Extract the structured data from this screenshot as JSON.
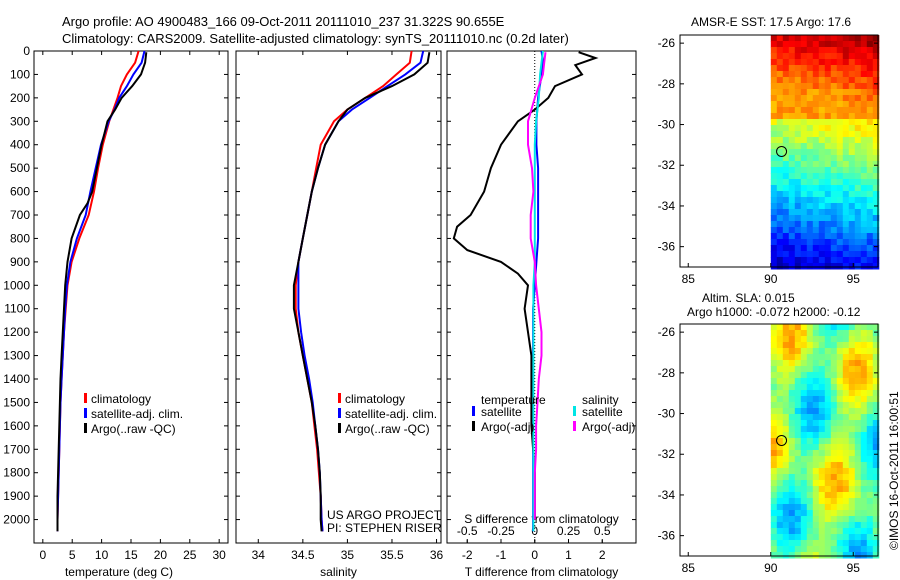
{
  "header": {
    "line1": "Argo profile: AO 4900483_166 09-Oct-2011 20111010_237 31.322S 90.655E",
    "line2": "Climatology: CARS2009. Satellite-adjusted climatology: synTS_20111010.nc (0.2d later)"
  },
  "credits": {
    "project": "US ARGO PROJECT",
    "pi": "PI: STEPHEN RISER",
    "stamp": "©IMOS 16-Oct-2011 16:00:51"
  },
  "colors": {
    "climatology": "#ff0000",
    "satellite_adj": "#0000ff",
    "argo": "#000000",
    "temp_sat_diff": "#0000ff",
    "sal_sat_diff": "#00e5e5",
    "argo_adj_sal_diff": "#ff00ff"
  },
  "legend_profiles": [
    "climatology",
    "satellite-adj. clim.",
    "Argo(..raw -QC)"
  ],
  "legend_diff": {
    "temp_head": "temperature",
    "sal_head": "salinity",
    "sat": "satellite",
    "argo": "Argo(-adj)"
  },
  "map_titles": {
    "sst": "AMSR-E SST: 17.5 Argo: 17.6",
    "sla1": "Altim. SLA: 0.015",
    "sla2": "Argo h1000: -0.072 h2000: -0.12"
  },
  "chart_data": [
    {
      "type": "line",
      "xlabel": "temperature (deg C)",
      "ylabel": "",
      "xlim": [
        -1.5,
        31.5
      ],
      "ylim": [
        2100,
        0
      ],
      "xticks": [
        0,
        5,
        10,
        15,
        20,
        25,
        30
      ],
      "yticks": [
        0,
        100,
        200,
        300,
        400,
        500,
        600,
        700,
        800,
        900,
        1000,
        1100,
        1200,
        1300,
        1400,
        1500,
        1600,
        1700,
        1800,
        1900,
        2000
      ],
      "series": [
        {
          "name": "climatology",
          "depth": [
            0,
            50,
            100,
            150,
            200,
            250,
            300,
            400,
            500,
            600,
            700,
            800,
            900,
            1000,
            1100,
            1200,
            1300,
            1400,
            1500,
            1600,
            1700,
            1800,
            1900,
            2000,
            2050
          ],
          "values": [
            16.3,
            15.7,
            14.3,
            13.3,
            12.7,
            12.0,
            11.3,
            10.2,
            9.4,
            8.7,
            7.8,
            6.2,
            4.9,
            4.2,
            3.9,
            3.6,
            3.4,
            3.2,
            3.0,
            2.9,
            2.8,
            2.7,
            2.6,
            2.5,
            2.5
          ]
        },
        {
          "name": "satellite-adj. clim.",
          "depth": [
            0,
            50,
            100,
            150,
            200,
            250,
            300,
            400,
            500,
            600,
            700,
            800,
            900,
            1000,
            1100,
            1200,
            1300,
            1400,
            1500,
            1600,
            1700,
            1800,
            1900,
            2000,
            2050
          ],
          "values": [
            17.3,
            16.8,
            15.4,
            14.3,
            13.0,
            12.2,
            11.2,
            9.9,
            9.0,
            8.1,
            7.3,
            5.8,
            4.7,
            4.1,
            3.8,
            3.6,
            3.4,
            3.2,
            3.0,
            2.9,
            2.8,
            2.7,
            2.6,
            2.5,
            2.5
          ]
        },
        {
          "name": "Argo(..raw -QC)",
          "depth": [
            5,
            50,
            100,
            150,
            200,
            250,
            300,
            400,
            500,
            600,
            650,
            700,
            800,
            900,
            1000,
            1100,
            1200,
            1300,
            1400,
            1500,
            1600,
            1700,
            1800,
            1900,
            2000,
            2050
          ],
          "values": [
            17.6,
            17.4,
            16.7,
            15.2,
            13.4,
            12.3,
            11.0,
            10.0,
            9.2,
            8.4,
            7.6,
            6.3,
            4.9,
            4.2,
            3.8,
            3.6,
            3.4,
            3.2,
            3.0,
            2.9,
            2.8,
            2.7,
            2.6,
            2.5,
            2.5,
            2.5
          ]
        }
      ]
    },
    {
      "type": "line",
      "xlabel": "salinity",
      "ylabel": "",
      "xlim": [
        33.75,
        36.05
      ],
      "ylim": [
        2100,
        0
      ],
      "xticks": [
        34,
        34.5,
        35,
        35.5,
        36
      ],
      "series": [
        {
          "name": "climatology",
          "depth": [
            0,
            50,
            100,
            150,
            200,
            250,
            300,
            400,
            500,
            600,
            700,
            800,
            900,
            1000,
            1100,
            1200,
            1300,
            1400,
            1500,
            1600,
            1700,
            1800,
            1900,
            2000,
            2050
          ],
          "values": [
            35.72,
            35.7,
            35.55,
            35.4,
            35.2,
            35.0,
            34.85,
            34.7,
            34.65,
            34.6,
            34.55,
            34.5,
            34.45,
            34.42,
            34.42,
            34.45,
            34.5,
            34.55,
            34.6,
            34.63,
            34.66,
            34.68,
            34.7,
            34.71,
            34.72
          ]
        },
        {
          "name": "satellite-adj. clim.",
          "depth": [
            0,
            50,
            100,
            150,
            200,
            250,
            300,
            400,
            500,
            600,
            700,
            800,
            900,
            1000,
            1100,
            1200,
            1300,
            1400,
            1500,
            1600,
            1700,
            1800,
            1900,
            2000,
            2050
          ],
          "values": [
            35.85,
            35.82,
            35.65,
            35.45,
            35.25,
            35.05,
            34.9,
            34.75,
            34.67,
            34.6,
            34.55,
            34.5,
            34.45,
            34.45,
            34.45,
            34.48,
            34.52,
            34.57,
            34.61,
            34.64,
            34.67,
            34.69,
            34.7,
            34.71,
            34.72
          ]
        },
        {
          "name": "Argo(..raw -QC)",
          "depth": [
            5,
            50,
            100,
            150,
            200,
            250,
            300,
            400,
            500,
            600,
            700,
            800,
            900,
            1000,
            1100,
            1200,
            1300,
            1400,
            1500,
            1600,
            1700,
            1800,
            1900,
            2000,
            2050
          ],
          "values": [
            35.92,
            35.9,
            35.75,
            35.5,
            35.2,
            35.0,
            34.9,
            34.75,
            34.67,
            34.6,
            34.55,
            34.5,
            34.45,
            34.4,
            34.4,
            34.45,
            34.5,
            34.55,
            34.6,
            34.64,
            34.67,
            34.69,
            34.7,
            34.7,
            34.71
          ]
        }
      ]
    },
    {
      "type": "line",
      "xlabel": "T difference from climatology",
      "xlabel_top": "S difference from climatology",
      "xlim": [
        -2.6,
        3.0
      ],
      "xticks": [
        -2,
        -1,
        0,
        1,
        2
      ],
      "xticks_top": [
        "-0.5",
        "-0.25",
        "0",
        "0.25",
        "0.5"
      ],
      "ylim": [
        2100,
        0
      ],
      "series": [
        {
          "name": "temperature satellite",
          "depth": [
            0,
            50,
            100,
            200,
            300,
            400,
            500,
            600,
            700,
            800,
            900,
            1000,
            1100,
            1200,
            1300,
            1500,
            1700,
            1900,
            2050
          ],
          "values": [
            0.2,
            0.25,
            0.2,
            0.1,
            0.05,
            0.05,
            0.1,
            0.1,
            0.1,
            0.1,
            0.05,
            0.0,
            -0.05,
            -0.05,
            -0.05,
            -0.05,
            -0.05,
            -0.05,
            -0.05
          ]
        },
        {
          "name": "temperature Argo(-adj)",
          "depth": [
            5,
            30,
            60,
            100,
            150,
            200,
            250,
            300,
            400,
            500,
            600,
            700,
            750,
            800,
            850,
            900,
            950,
            1000,
            1100,
            1200,
            1300,
            1400,
            1600,
            1800,
            2000
          ],
          "values": [
            1.3,
            1.8,
            1.2,
            1.4,
            0.6,
            0.4,
            0.0,
            -0.5,
            -1.0,
            -1.3,
            -1.5,
            -1.9,
            -2.3,
            -2.4,
            -2.0,
            -1.0,
            -0.5,
            -0.2,
            -0.3,
            -0.2,
            -0.1,
            -0.1,
            -0.1,
            0.0,
            0.0
          ]
        },
        {
          "name": "salinity satellite",
          "depth": [
            0,
            50,
            100,
            200,
            300,
            400,
            600,
            800,
            900,
            1000,
            1200,
            1400,
            1600,
            1800,
            2050
          ],
          "values": [
            0.06,
            0.05,
            0.04,
            0.03,
            0.01,
            0.0,
            0.0,
            0.0,
            0.0,
            -0.01,
            -0.01,
            -0.01,
            -0.01,
            -0.01,
            -0.01
          ]
        },
        {
          "name": "salinity Argo(-adj)",
          "depth": [
            5,
            50,
            100,
            200,
            300,
            400,
            500,
            600,
            700,
            800,
            900,
            1000,
            1100,
            1200,
            1300,
            1400,
            1500,
            1600,
            1700,
            1800,
            1900,
            2000
          ],
          "values": [
            0.08,
            0.07,
            0.06,
            0.0,
            -0.05,
            -0.05,
            -0.02,
            -0.01,
            -0.03,
            -0.03,
            0.0,
            0.01,
            0.03,
            0.05,
            0.05,
            0.03,
            0.02,
            0.01,
            0.01,
            0.0,
            0.0,
            0.0
          ]
        }
      ]
    },
    {
      "type": "heatmap",
      "title": "AMSR-E SST: 17.5 Argo: 17.6",
      "xlim": [
        84.5,
        96.5
      ],
      "ylim": [
        -37,
        -25.6
      ],
      "xticks": [
        85,
        90,
        95
      ],
      "yticks": [
        -26,
        -28,
        -30,
        -32,
        -34,
        -36
      ],
      "marker": {
        "lon": 90.655,
        "lat": -31.322
      }
    },
    {
      "type": "heatmap",
      "title": "Altim. SLA: 0.015 / Argo h1000: -0.072 h2000: -0.12",
      "xlim": [
        84.5,
        96.5
      ],
      "ylim": [
        -37,
        -25.6
      ],
      "xticks": [
        85,
        90,
        95
      ],
      "yticks": [
        -26,
        -28,
        -30,
        -32,
        -34,
        -36
      ],
      "marker": {
        "lon": 90.655,
        "lat": -31.322
      }
    }
  ]
}
